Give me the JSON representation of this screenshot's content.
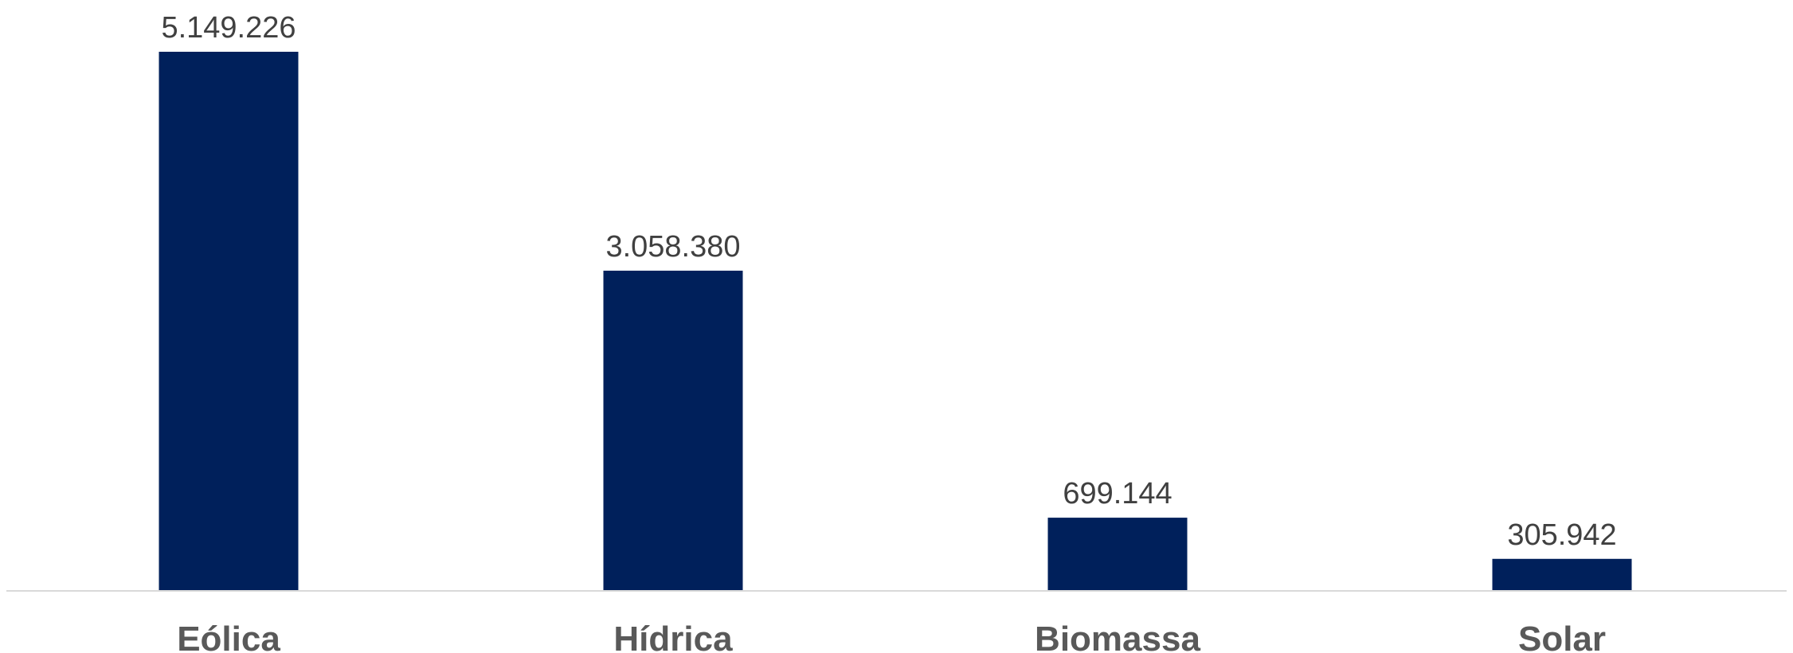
{
  "chart_data": {
    "type": "bar",
    "categories": [
      "Eólica",
      "Hídrica",
      "Biomassa",
      "Solar"
    ],
    "values": [
      5149226,
      3058380,
      699144,
      305942
    ],
    "value_labels": [
      "5.149.226",
      "3.058.380",
      "699.144",
      "305.942"
    ],
    "title": "",
    "xlabel": "",
    "ylabel": "",
    "ylim": [
      0,
      5149226
    ],
    "grid": false,
    "legend": "none",
    "colors": {
      "bar": "#00205B",
      "axis": "#d9d9d9",
      "value_text": "#404040",
      "category_text": "#595959"
    }
  }
}
